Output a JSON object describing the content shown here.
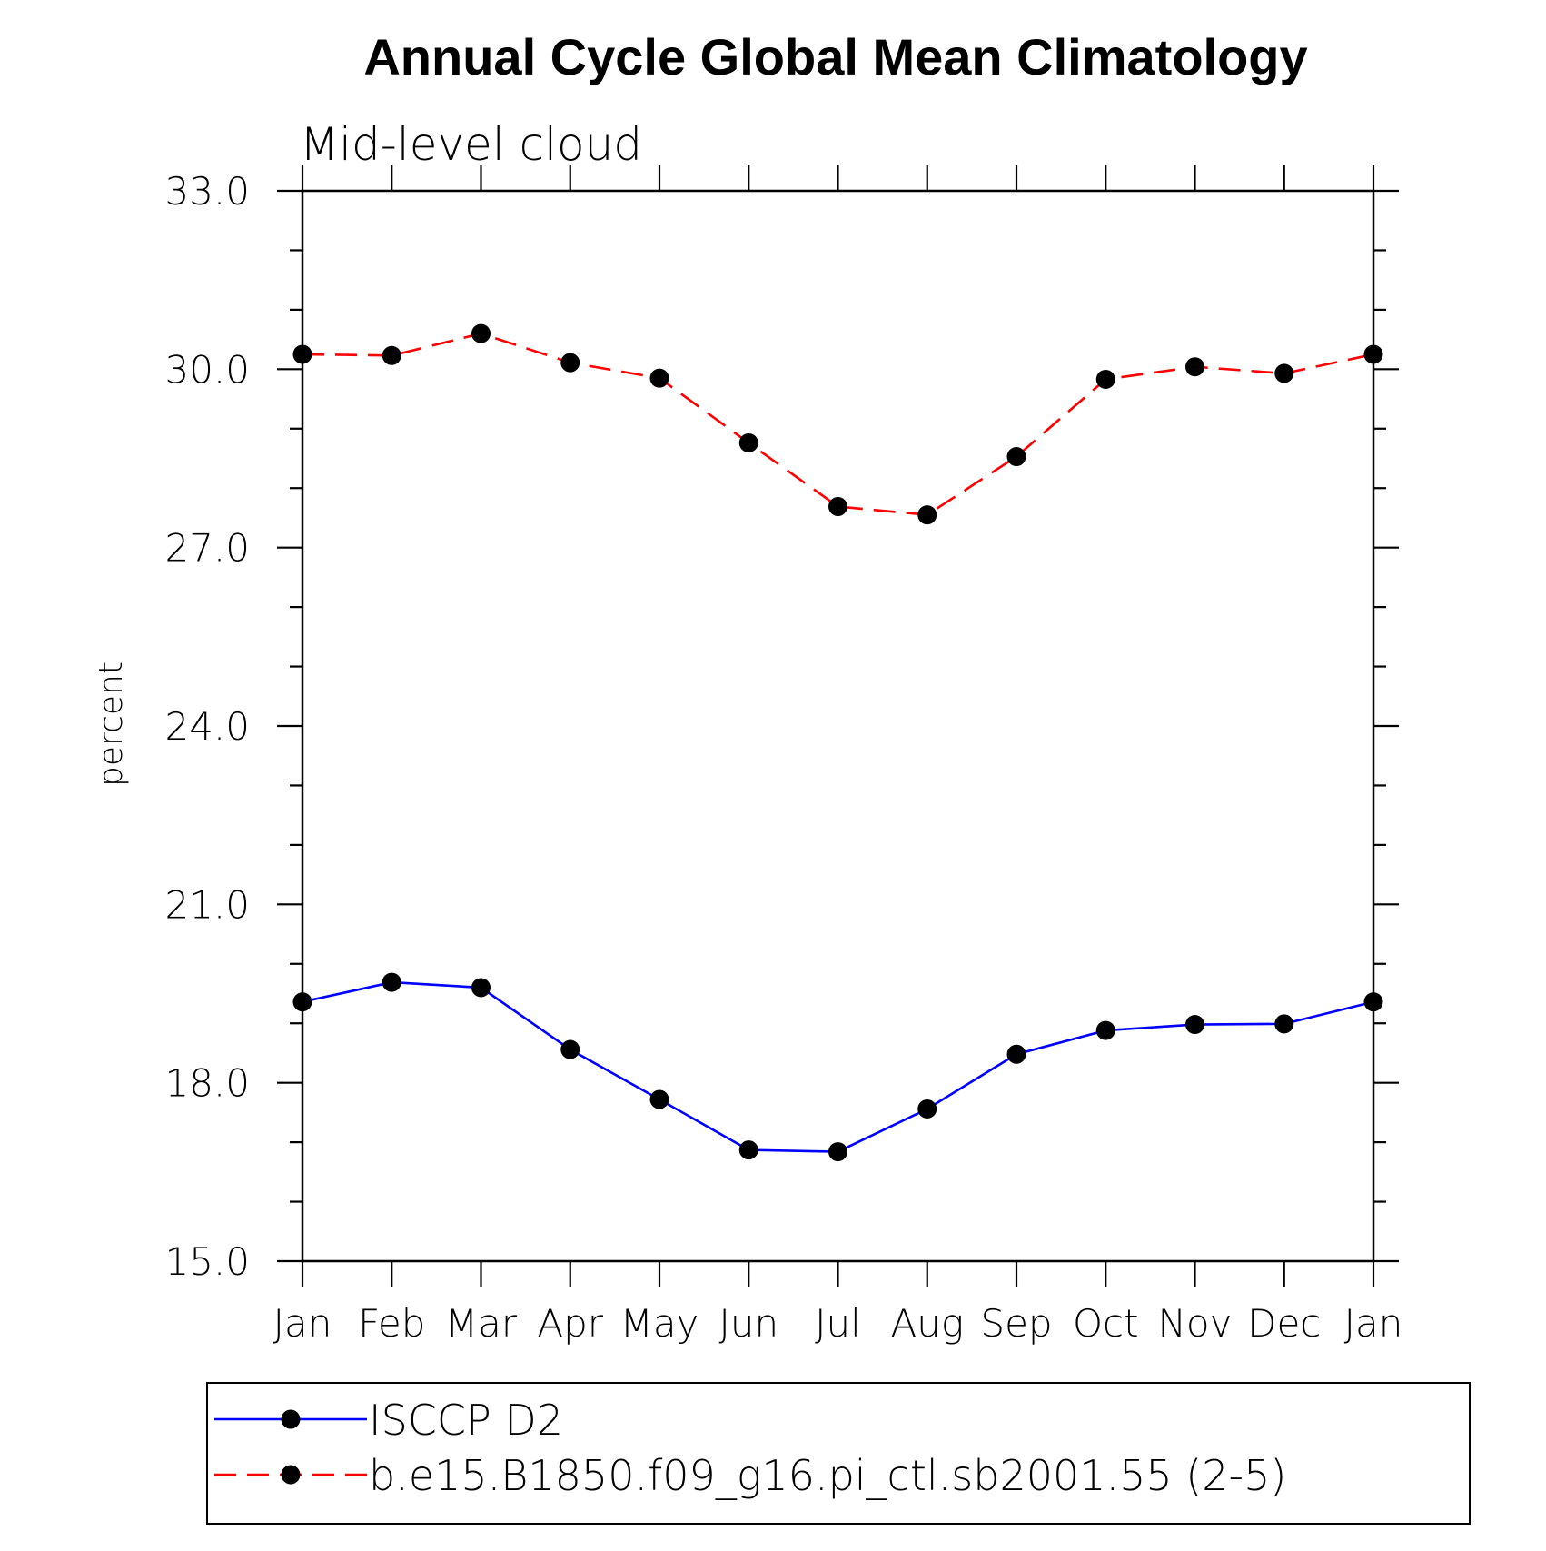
{
  "chart_data": {
    "type": "line",
    "title": "Annual Cycle Global Mean Climatology",
    "subtitle": "Mid-level cloud",
    "xlabel": "",
    "ylabel": "percent",
    "categories": [
      "Jan",
      "Feb",
      "Mar",
      "Apr",
      "May",
      "Jun",
      "Jul",
      "Aug",
      "Sep",
      "Oct",
      "Nov",
      "Dec",
      "Jan"
    ],
    "ylim": [
      15.0,
      33.0
    ],
    "yticks": [
      "15.0",
      "18.0",
      "21.0",
      "24.0",
      "27.0",
      "30.0",
      "33.0"
    ],
    "grid": false,
    "legend_position": "bottom",
    "series": [
      {
        "name": "ISCCP D2",
        "color": "#0000ff",
        "dash": "solid",
        "marker": "filled-circle",
        "values": [
          19.36,
          19.69,
          19.6,
          18.56,
          17.72,
          16.87,
          16.84,
          17.56,
          18.48,
          18.88,
          18.98,
          18.99,
          19.36
        ]
      },
      {
        "name": "b.e15.B1850.f09_g16.pi_ctl.sb2001.55 (2-5)",
        "color": "#ff0000",
        "dash": "dashed",
        "marker": "filled-circle",
        "values": [
          30.25,
          30.23,
          30.6,
          30.11,
          29.85,
          28.76,
          27.69,
          27.55,
          28.53,
          29.83,
          30.04,
          29.93,
          30.25
        ]
      }
    ]
  }
}
